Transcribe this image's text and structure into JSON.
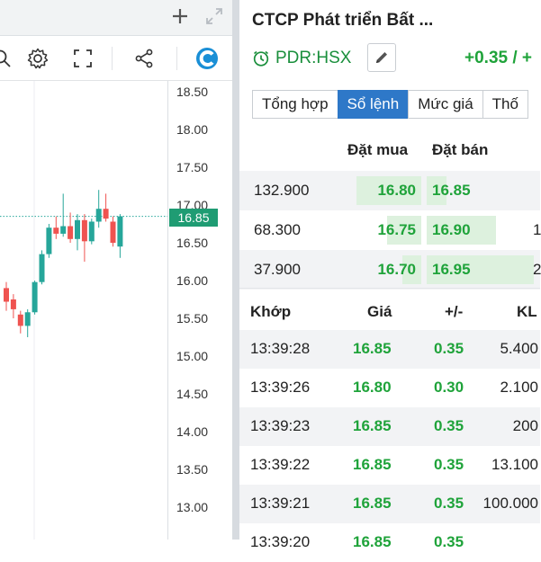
{
  "chart": {
    "y_ticks": [
      "18.50",
      "18.00",
      "17.50",
      "17.00",
      "16.50",
      "16.00",
      "15.50",
      "15.00",
      "14.50",
      "14.00",
      "13.50",
      "13.00"
    ],
    "last_price_label": "16.85",
    "up_color": "#26a69a",
    "down_color": "#ef5350",
    "candles": [
      {
        "o": 15.9,
        "h": 15.98,
        "l": 15.6,
        "c": 15.72
      },
      {
        "o": 15.75,
        "h": 15.82,
        "l": 15.5,
        "c": 15.62
      },
      {
        "o": 15.55,
        "h": 15.6,
        "l": 15.3,
        "c": 15.4
      },
      {
        "o": 15.4,
        "h": 15.62,
        "l": 15.25,
        "c": 15.58
      },
      {
        "o": 15.58,
        "h": 16.0,
        "l": 15.55,
        "c": 15.98
      },
      {
        "o": 15.98,
        "h": 16.4,
        "l": 15.95,
        "c": 16.35
      },
      {
        "o": 16.35,
        "h": 16.75,
        "l": 16.3,
        "c": 16.7
      },
      {
        "o": 16.7,
        "h": 16.85,
        "l": 16.55,
        "c": 16.62
      },
      {
        "o": 16.62,
        "h": 17.15,
        "l": 16.58,
        "c": 16.72
      },
      {
        "o": 16.72,
        "h": 16.9,
        "l": 16.5,
        "c": 16.55
      },
      {
        "o": 16.55,
        "h": 16.88,
        "l": 16.4,
        "c": 16.8
      },
      {
        "o": 16.8,
        "h": 16.88,
        "l": 16.25,
        "c": 16.52
      },
      {
        "o": 16.52,
        "h": 16.82,
        "l": 16.48,
        "c": 16.78
      },
      {
        "o": 16.78,
        "h": 17.2,
        "l": 16.7,
        "c": 16.95
      },
      {
        "o": 16.95,
        "h": 17.15,
        "l": 16.78,
        "c": 16.82
      },
      {
        "o": 16.78,
        "h": 16.85,
        "l": 16.45,
        "c": 16.5
      },
      {
        "o": 16.45,
        "h": 16.88,
        "l": 16.3,
        "c": 16.85
      }
    ]
  },
  "header": {
    "company_name": "CTCP Phát triển Bất ...",
    "ticker": "PDR:HSX",
    "change": "+0.35 / +"
  },
  "tabs": [
    {
      "label": "Tổng hợp",
      "active": false
    },
    {
      "label": "Sổ lệnh",
      "active": true
    },
    {
      "label": "Mức giá",
      "active": false
    },
    {
      "label": "Thố",
      "active": false
    }
  ],
  "orderbook": {
    "bid_header": "Đặt mua",
    "ask_header": "Đặt bán",
    "rows": [
      {
        "bid_vol": "132.900",
        "bid": "16.80",
        "ask": "16.85",
        "ask_vol": "",
        "bid_frac": 0.45,
        "ask_frac": 0.13
      },
      {
        "bid_vol": "68.300",
        "bid": "16.75",
        "ask": "16.90",
        "ask_vol": "1",
        "bid_frac": 0.24,
        "ask_frac": 0.45
      },
      {
        "bid_vol": "37.900",
        "bid": "16.70",
        "ask": "16.95",
        "ask_vol": "2",
        "bid_frac": 0.13,
        "ask_frac": 0.7
      }
    ]
  },
  "trades": {
    "headers": {
      "time": "Khớp",
      "price": "Giá",
      "change": "+/-",
      "volume": "KL"
    },
    "rows": [
      {
        "time": "13:39:28",
        "price": "16.85",
        "change": "0.35",
        "volume": "5.400"
      },
      {
        "time": "13:39:26",
        "price": "16.80",
        "change": "0.30",
        "volume": "2.100"
      },
      {
        "time": "13:39:23",
        "price": "16.85",
        "change": "0.35",
        "volume": "200"
      },
      {
        "time": "13:39:22",
        "price": "16.85",
        "change": "0.35",
        "volume": "13.100"
      },
      {
        "time": "13:39:21",
        "price": "16.85",
        "change": "0.35",
        "volume": "100.000"
      },
      {
        "time": "13:39:20",
        "price": "16.85",
        "change": "0.35",
        "volume": ""
      }
    ]
  },
  "icons": {
    "window": [
      "plus-icon",
      "expand-icon"
    ],
    "toolbar": [
      "search-icon",
      "gear-icon",
      "fullscreen-icon",
      "share-icon",
      "brand-logo-icon"
    ],
    "ticker": "clock-icon",
    "edit": "pencil-icon"
  },
  "colors": {
    "green_text": "#1fa33a",
    "bar_fill": "#ddf1de",
    "tab_active": "#2e78c8",
    "brand": "#1a8fd6"
  }
}
